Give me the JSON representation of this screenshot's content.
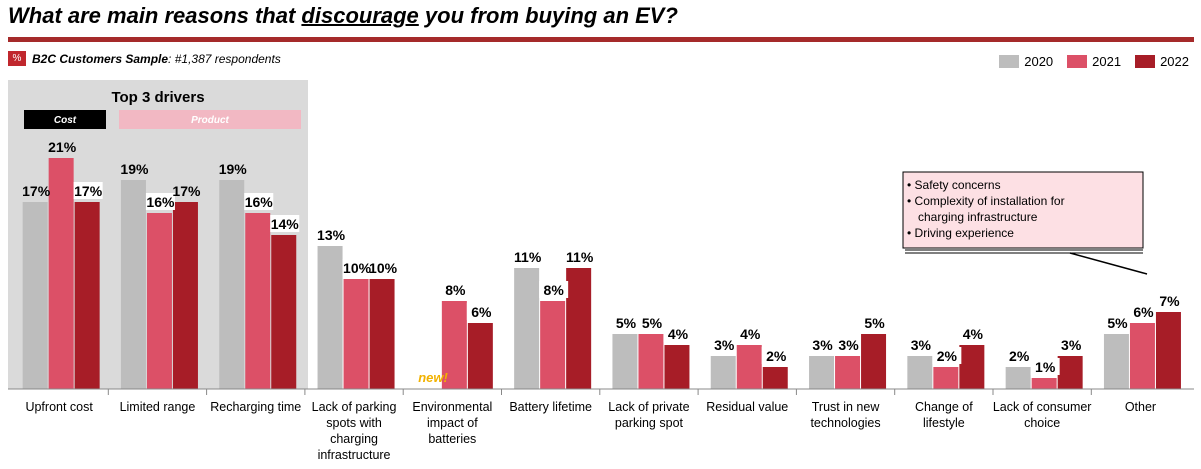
{
  "header": {
    "title_before": "What are main reasons that ",
    "title_emphasis": "discourage",
    "title_after": " you from buying an EV?",
    "sample_badge": "%",
    "sample_label": "B2C Customers Sample",
    "sample_detail": ": #1,387 respondents"
  },
  "drivers": {
    "title": "Top 3 drivers",
    "cost_tag": "Cost",
    "product_tag": "Product"
  },
  "new_tag": "new!",
  "callout": {
    "items": [
      "Safety concerns",
      "Complexity of installation for charging infrastructure",
      "Driving experience"
    ]
  },
  "chart_data": {
    "type": "bar",
    "categories": [
      "Upfront cost",
      "Limited range",
      "Recharging time",
      "Lack of parking spots with charging infrastructure",
      "Environmental impact of batteries",
      "Battery lifetime",
      "Lack of private parking spot",
      "Residual value",
      "Trust in new technologies",
      "Change of lifestyle",
      "Lack of consumer choice",
      "Other"
    ],
    "series": [
      {
        "name": "2020",
        "color": "#bdbdbd",
        "values": [
          17,
          19,
          19,
          13,
          null,
          11,
          5,
          3,
          3,
          3,
          2,
          5
        ]
      },
      {
        "name": "2021",
        "color": "#dc5067",
        "values": [
          21,
          16,
          16,
          10,
          8,
          8,
          5,
          4,
          3,
          2,
          1,
          6
        ]
      },
      {
        "name": "2022",
        "color": "#a71d27",
        "values": [
          17,
          17,
          14,
          10,
          6,
          11,
          4,
          2,
          5,
          4,
          3,
          7
        ]
      }
    ],
    "value_suffix": "%",
    "legend_position": "top-right",
    "grid": false
  }
}
